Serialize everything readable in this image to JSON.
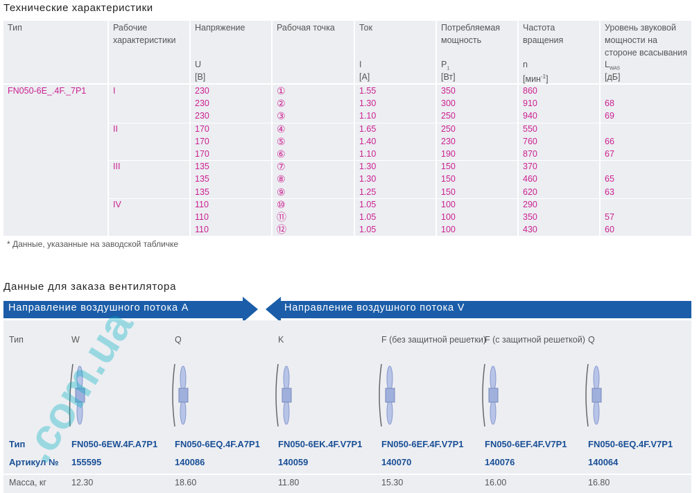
{
  "spec": {
    "title": "Технические характеристики",
    "columns": [
      {
        "label": "Тип"
      },
      {
        "label": "Рабочие характеристики"
      },
      {
        "label": "Напряжение",
        "symbol": "U",
        "unit": "[В]"
      },
      {
        "label": "Рабочая точка"
      },
      {
        "label": "Ток",
        "symbol": "I",
        "unit": "[А]"
      },
      {
        "label": "Потребляемая мощность",
        "symbol": "P",
        "symbol_sub": "1",
        "unit": "[Вт]"
      },
      {
        "label": "Частота вращения",
        "symbol": "n",
        "unit": "[мин",
        "unit_sup": "-1",
        "unit_end": "]"
      },
      {
        "label": "Уровень звуковой мощности на стороне всасывания",
        "symbol": "L",
        "symbol_sub": "WA5",
        "unit": "[дБ]"
      }
    ],
    "type": "FN050-6E_.4F._7P1",
    "groups": [
      {
        "label": "I",
        "rows": [
          [
            "230",
            "①",
            "1.55",
            "350",
            "860"
          ],
          [
            "230",
            "②",
            "1.30",
            "300",
            "910",
            "68"
          ],
          [
            "230",
            "③",
            "1.10",
            "250",
            "940",
            "69"
          ]
        ]
      },
      {
        "label": "II",
        "rows": [
          [
            "170",
            "④",
            "1.65",
            "250",
            "550"
          ],
          [
            "170",
            "⑤",
            "1.40",
            "230",
            "760",
            "66"
          ],
          [
            "170",
            "⑥",
            "1.10",
            "190",
            "870",
            "67"
          ]
        ]
      },
      {
        "label": "III",
        "rows": [
          [
            "135",
            "⑦",
            "1.30",
            "150",
            "370"
          ],
          [
            "135",
            "⑧",
            "1.30",
            "150",
            "460",
            "65"
          ],
          [
            "135",
            "⑨",
            "1.25",
            "150",
            "620",
            "63"
          ]
        ]
      },
      {
        "label": "IV",
        "rows": [
          [
            "110",
            "⑩",
            "1.05",
            "100",
            "290"
          ],
          [
            "110",
            "⑪",
            "1.05",
            "100",
            "350",
            "57"
          ],
          [
            "110",
            "⑫",
            "1.05",
            "100",
            "430",
            "60"
          ]
        ]
      }
    ],
    "footnote": "* Данные, указанные на заводской табличке"
  },
  "order": {
    "title": "Данные для заказа вентилятора",
    "flow_a": "Направление воздушного потока A",
    "flow_v": "Направление воздушного потока V",
    "type_label": "Тип",
    "type_row_label": "Тип",
    "article_label": "Артикул №",
    "mass_label": "Масса, кг",
    "variants": [
      {
        "design": "W",
        "type": "FN050-6EW.4F.A7P1",
        "article": "155595",
        "mass": "12.30"
      },
      {
        "design": "Q",
        "type": "FN050-6EQ.4F.A7P1",
        "article": "140086",
        "mass": "18.60"
      },
      {
        "design": "K",
        "type": "FN050-6EK.4F.V7P1",
        "article": "140059",
        "mass": "11.80"
      },
      {
        "design": "F (без защитной решетки)",
        "type": "FN050-6EF.4F.V7P1",
        "article": "140070",
        "mass": "15.30"
      },
      {
        "design": "F (с защитной решеткой)",
        "type": "FN050-6EF.4F.V7P1",
        "article": "140076",
        "mass": "16.00"
      },
      {
        "design": "Q",
        "type": "FN050-6EQ.4F.V7P1",
        "article": "140064",
        "mass": "16.80"
      }
    ]
  },
  "watermark": ".com.ua"
}
